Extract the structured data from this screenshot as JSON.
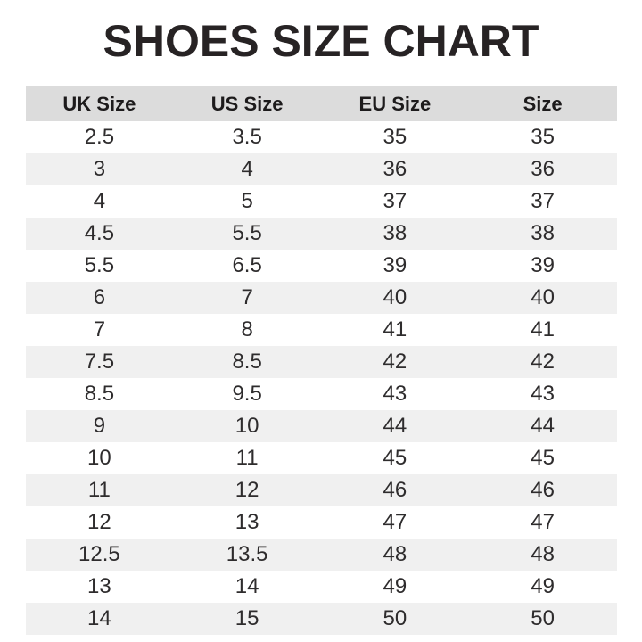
{
  "chart_data": {
    "type": "table",
    "title": "SHOES SIZE CHART",
    "columns": [
      "UK Size",
      "US Size",
      "EU Size",
      "Size"
    ],
    "rows": [
      [
        "2.5",
        "3.5",
        "35",
        "35"
      ],
      [
        "3",
        "4",
        "36",
        "36"
      ],
      [
        "4",
        "5",
        "37",
        "37"
      ],
      [
        "4.5",
        "5.5",
        "38",
        "38"
      ],
      [
        "5.5",
        "6.5",
        "39",
        "39"
      ],
      [
        "6",
        "7",
        "40",
        "40"
      ],
      [
        "7",
        "8",
        "41",
        "41"
      ],
      [
        "7.5",
        "8.5",
        "42",
        "42"
      ],
      [
        "8.5",
        "9.5",
        "43",
        "43"
      ],
      [
        "9",
        "10",
        "44",
        "44"
      ],
      [
        "10",
        "11",
        "45",
        "45"
      ],
      [
        "11",
        "12",
        "46",
        "46"
      ],
      [
        "12",
        "13",
        "47",
        "47"
      ],
      [
        "12.5",
        "13.5",
        "48",
        "48"
      ],
      [
        "13",
        "14",
        "49",
        "49"
      ],
      [
        "14",
        "15",
        "50",
        "50"
      ]
    ],
    "layout_hints": {
      "row_striping": "odd rows white, even rows light gray",
      "text_alignment": "center",
      "columns_equal_width": true
    }
  },
  "colors": {
    "header_bg": "#dcdcdc",
    "stripe_bg": "#f0f0f0",
    "text": "#2e2c2d",
    "title": "#272324"
  }
}
